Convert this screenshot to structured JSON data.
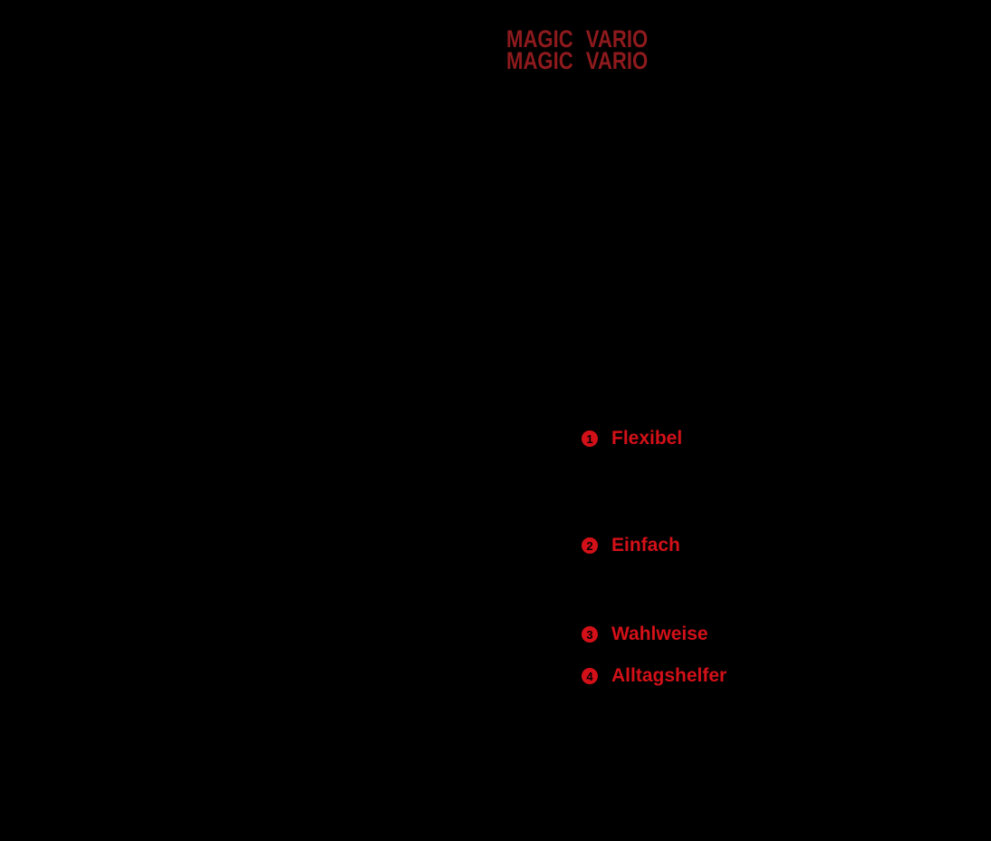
{
  "page": {
    "background_color": "#000000"
  },
  "logo": {
    "color": "#8e1a1d",
    "lines": [
      {
        "word1": "MAGIC",
        "word2": "VARIO"
      },
      {
        "word1": "MAGIC",
        "word2": "VARIO"
      }
    ]
  },
  "features": {
    "accent_color": "#d31018",
    "items": [
      {
        "number": "1",
        "label": "Flexibel"
      },
      {
        "number": "2",
        "label": "Einfach"
      },
      {
        "number": "3",
        "label": "Wahlweise"
      },
      {
        "number": "4",
        "label": "Alltagshelfer"
      }
    ]
  }
}
